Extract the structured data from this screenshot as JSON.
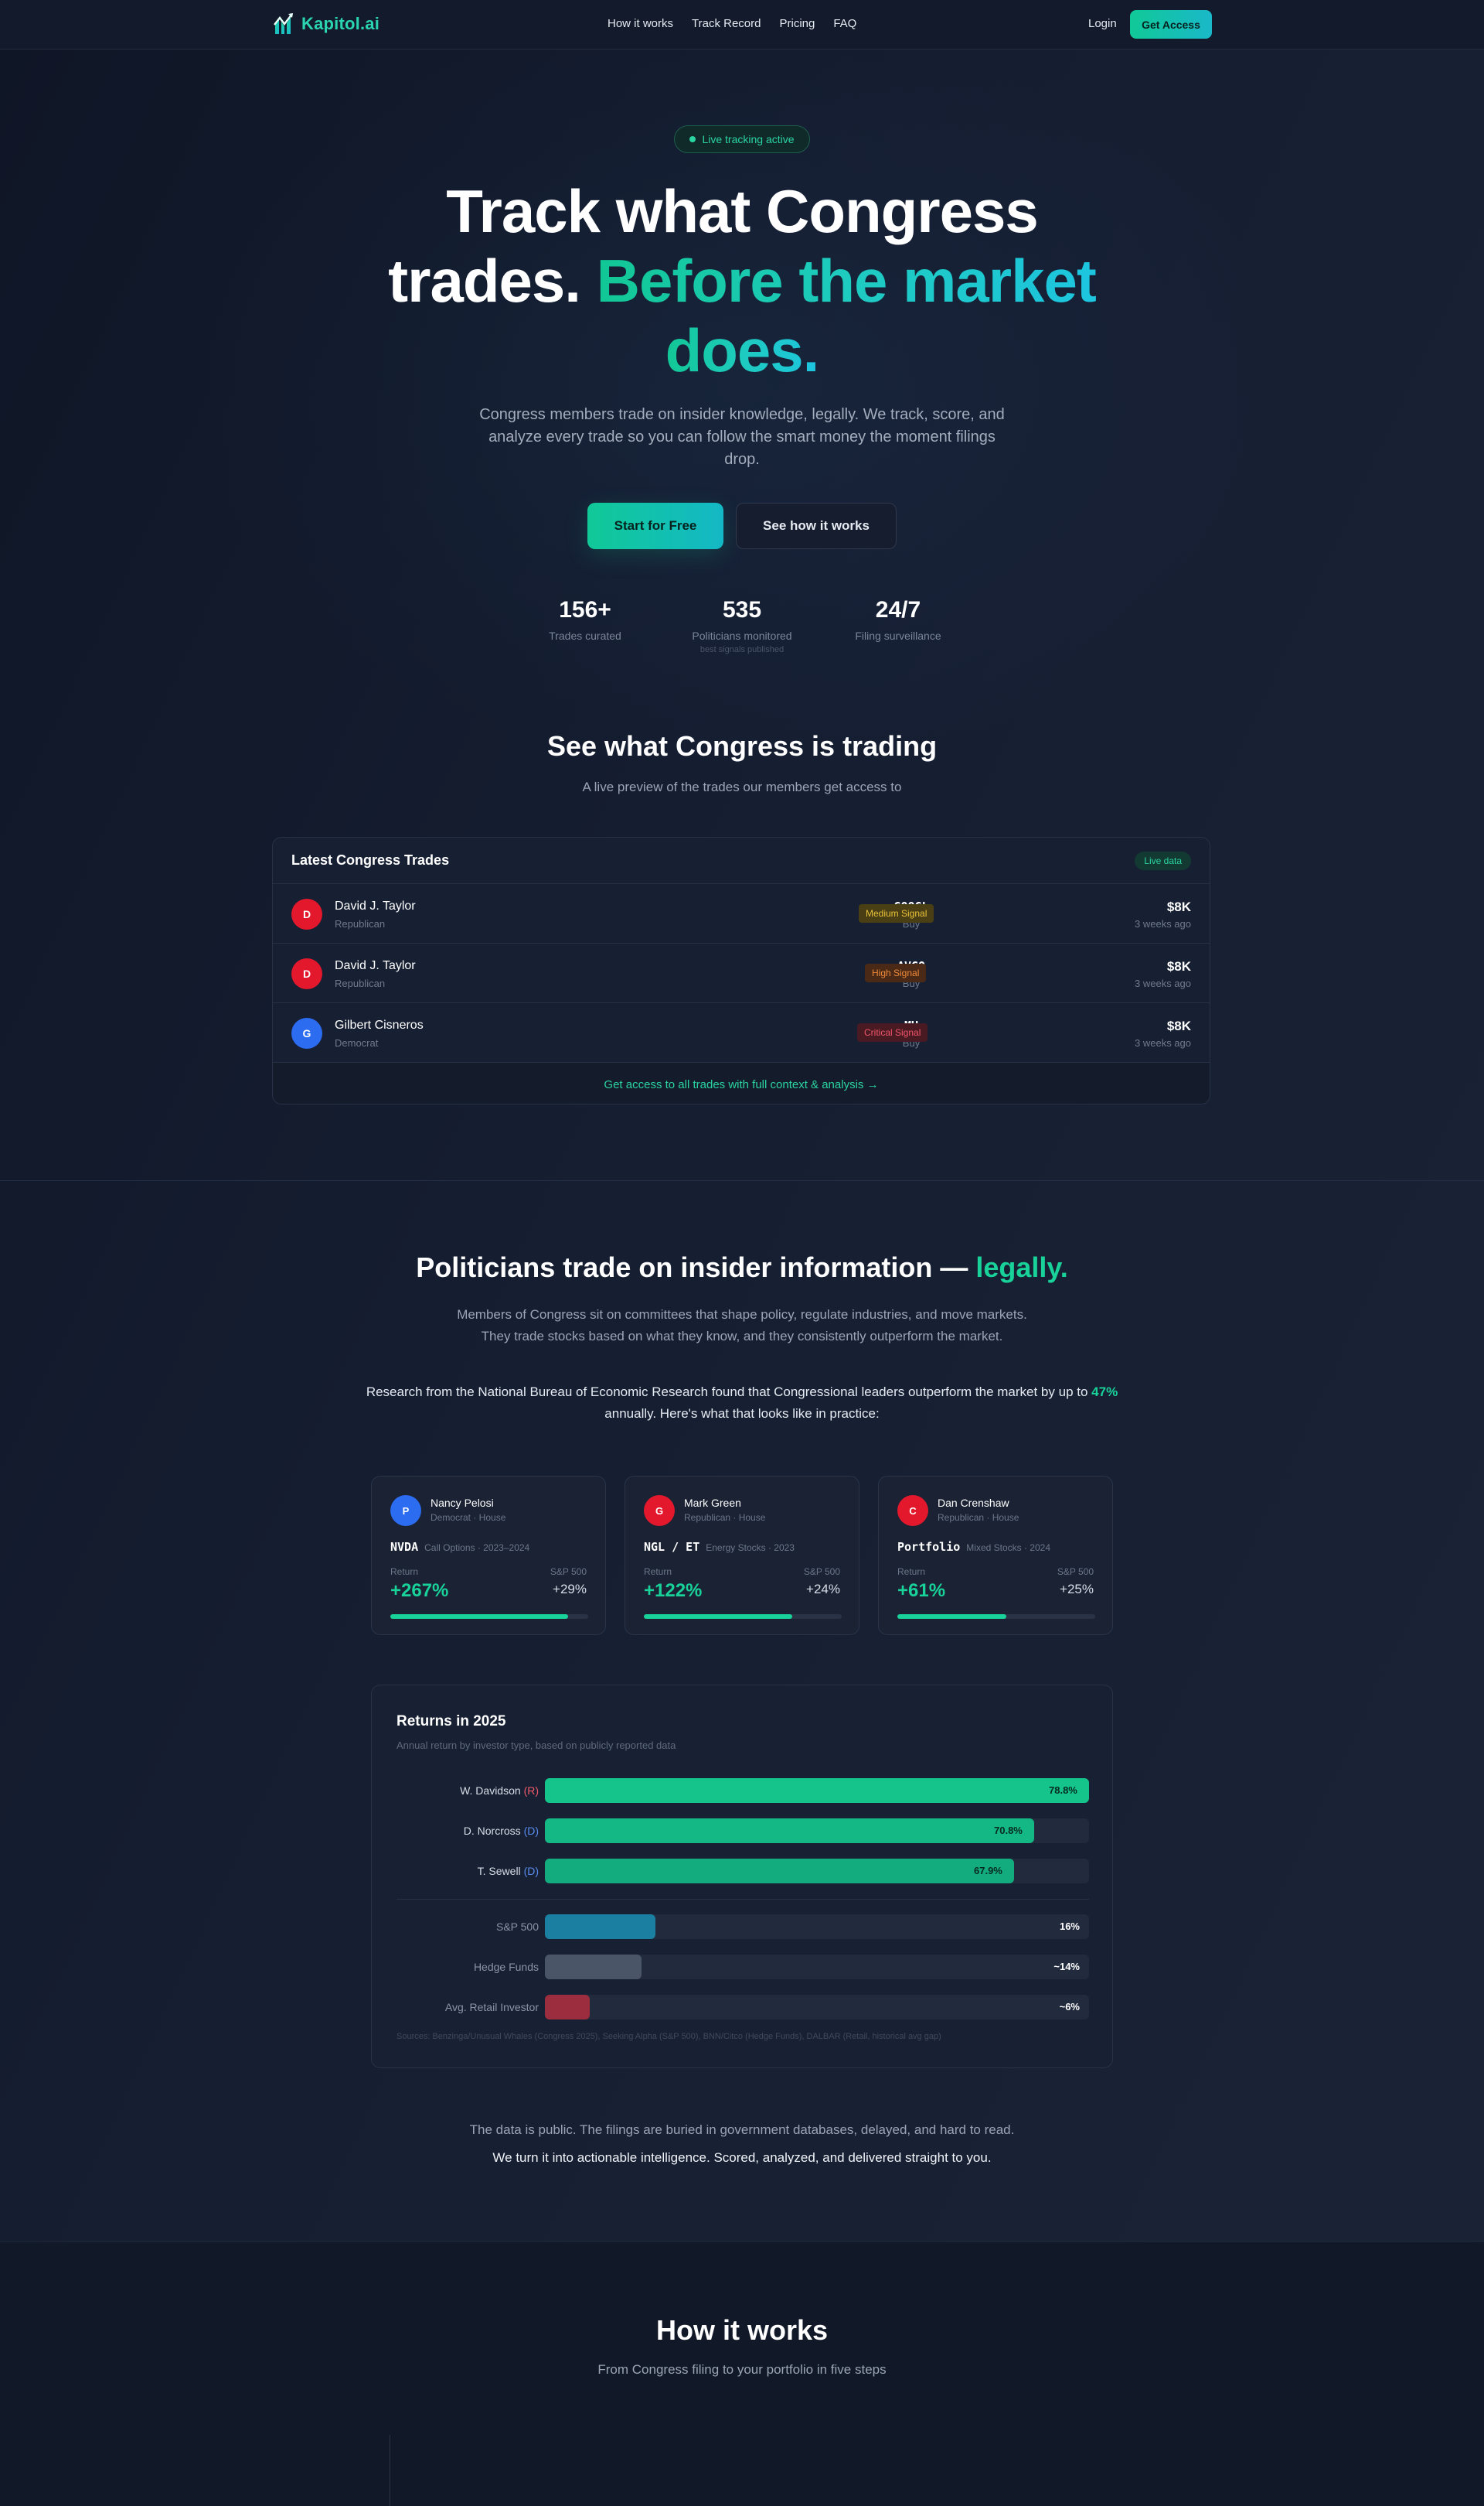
{
  "nav": {
    "logo": "Kapitol.ai",
    "links": [
      "How it works",
      "Track Record",
      "Pricing",
      "FAQ"
    ],
    "login": "Login",
    "cta": "Get Access"
  },
  "hero": {
    "badge": "Live tracking active",
    "title_line1": "Track what Congress",
    "title_line2_plain": "trades. ",
    "title_line2_accent": "Before the market",
    "title_line3_accent": "does.",
    "subtitle": "Congress members trade on insider knowledge, legally. We track, score, and analyze every trade so you can follow the smart money the moment filings drop.",
    "primary_button": "Start for Free",
    "secondary_button": "See how it works",
    "stats": [
      {
        "value": "156+",
        "label": "Trades curated",
        "note": ""
      },
      {
        "value": "535",
        "label": "Politicians monitored",
        "note": "best signals published"
      },
      {
        "value": "24/7",
        "label": "Filing surveillance",
        "note": ""
      }
    ]
  },
  "preview": {
    "title": "See what Congress is trading",
    "subtitle": "A live preview of the trades our members get access to",
    "card_title": "Latest Congress Trades",
    "live_badge": "Live data",
    "trades": [
      {
        "initial": "D",
        "name": "David J. Taylor",
        "party": "Republican",
        "ticker": "GOOGL",
        "type": "Buy",
        "signal": "Medium Signal",
        "amount": "$8K",
        "time": "3 weeks ago",
        "avatar_color": "#e3182d",
        "signal_bg": "#4a3f14",
        "signal_fg": "#e8c23a"
      },
      {
        "initial": "D",
        "name": "David J. Taylor",
        "party": "Republican",
        "ticker": "AVGO",
        "type": "Buy",
        "signal": "High Signal",
        "amount": "$8K",
        "time": "3 weeks ago",
        "avatar_color": "#e3182d",
        "signal_bg": "#4a2a17",
        "signal_fg": "#f08a3a"
      },
      {
        "initial": "G",
        "name": "Gilbert Cisneros",
        "party": "Democrat",
        "ticker": "MU",
        "type": "Buy",
        "signal": "Critical Signal",
        "amount": "$8K",
        "time": "3 weeks ago",
        "avatar_color": "#2b6cf0",
        "signal_bg": "#4a1a22",
        "signal_fg": "#f0556a"
      }
    ],
    "footer_link": "Get access to all trades with full context & analysis →"
  },
  "insider": {
    "title_plain": "Politicians trade on insider information — ",
    "title_accent": "legally.",
    "para1": "Members of Congress sit on committees that shape policy, regulate industries, and move markets. They trade stocks based on what they know, and they consistently outperform the market.",
    "para2_a": "Research from the National Bureau of Economic Research found that Congressional leaders outperform the market by up to ",
    "para2_accent": "47%",
    "para2_b": " annually. Here's what that looks like in practice:",
    "cards": [
      {
        "initial": "P",
        "name": "Nancy Pelosi",
        "role": "Democrat · House",
        "ticker": "NVDA",
        "detail": "Call Options · 2023–2024",
        "return_label": "Return",
        "sp_label": "S&P 500",
        "return": "+267%",
        "sp": "+29%",
        "progress": 0.9,
        "avatar_color": "#2b6cf0"
      },
      {
        "initial": "G",
        "name": "Mark Green",
        "role": "Republican · House",
        "ticker": "NGL / ET",
        "detail": "Energy Stocks · 2023",
        "return_label": "Return",
        "sp_label": "S&P 500",
        "return": "+122%",
        "sp": "+24%",
        "progress": 0.75,
        "avatar_color": "#e3182d"
      },
      {
        "initial": "C",
        "name": "Dan Crenshaw",
        "role": "Republican · House",
        "ticker": "Portfolio",
        "detail": "Mixed Stocks · 2024",
        "return_label": "Return",
        "sp_label": "S&P 500",
        "return": "+61%",
        "sp": "+25%",
        "progress": 0.55,
        "avatar_color": "#e3182d"
      }
    ]
  },
  "returns": {
    "title": "Returns in 2025",
    "subtitle": "Annual return by investor type, based on publicly reported data",
    "rows": [
      {
        "name": "W. Davidson",
        "party": "(R)",
        "party_color": "#f05a6a",
        "value": 78.8,
        "label": "78.8%",
        "color": "#14c48a"
      },
      {
        "name": "D. Norcross",
        "party": "(D)",
        "party_color": "#5a8cf0",
        "value": 70.8,
        "label": "70.8%",
        "color": "#14b884"
      },
      {
        "name": "T. Sewell",
        "party": "(D)",
        "party_color": "#5a8cf0",
        "value": 67.9,
        "label": "67.9%",
        "color": "#13ac7e"
      },
      {
        "name": "S&P 500",
        "party": "",
        "party_color": "",
        "value": 16,
        "label": "16%",
        "color": "#1a7fa0"
      },
      {
        "name": "Hedge Funds",
        "party": "",
        "party_color": "",
        "value": 14,
        "label": "~14%",
        "color": "#4a5568"
      },
      {
        "name": "Avg. Retail Investor",
        "party": "",
        "party_color": "",
        "value": 6.5,
        "label": "~6%",
        "color": "#9b2d3e"
      }
    ],
    "max": 78.8,
    "sources": "Sources: Benzinga/Unusual Whales (Congress 2025), Seeking Alpha (S&P 500), BNN/Citco (Hedge Funds), DALBAR (Retail, historical avg gap)"
  },
  "closing": {
    "line1": "The data is public. The filings are buried in government databases, delayed, and hard to read.",
    "line2": "We turn it into actionable intelligence. Scored, analyzed, and delivered straight to you."
  },
  "how": {
    "title": "How it works",
    "subtitle": "From Congress filing to your portfolio in five steps"
  }
}
